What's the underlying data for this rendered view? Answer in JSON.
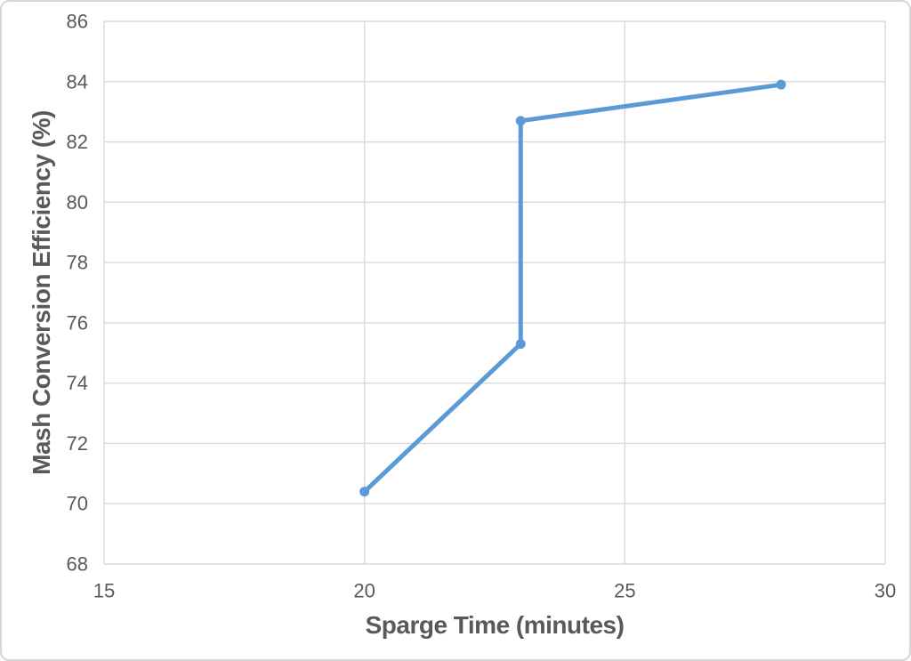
{
  "chart_data": {
    "type": "line",
    "title": "",
    "xlabel": "Sparge Time (minutes)",
    "ylabel": "Mash Conversion Efficiency (%)",
    "x": [
      20,
      23,
      23,
      28
    ],
    "y": [
      70.4,
      75.3,
      82.7,
      83.9
    ],
    "xlim": [
      15,
      30
    ],
    "ylim": [
      68,
      86
    ],
    "xticks": [
      15,
      20,
      25,
      30
    ],
    "yticks": [
      68,
      70,
      72,
      74,
      76,
      78,
      80,
      82,
      84,
      86
    ],
    "grid": true,
    "legend": false,
    "marker": "circle"
  },
  "theme": {
    "line_color": "#5B9BD5",
    "marker_color": "#5B9BD5",
    "grid_color": "#D9D9D9",
    "text_color": "#595959",
    "border_color": "#D8D8D8",
    "background_color": "#FFFFFF"
  }
}
